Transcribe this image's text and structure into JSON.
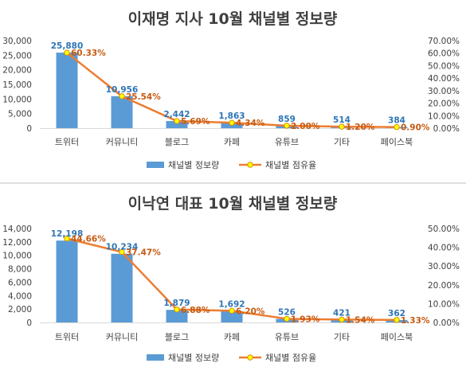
{
  "colors": {
    "bar": "#5b9bd5",
    "line": "#ed7d31",
    "marker_fill": "#ffff00",
    "marker_stroke": "#d99100",
    "bar_label": "#2e75b6",
    "line_label": "#c55a11",
    "grid": "#d9d9d9",
    "divider": "#bfbfbf"
  },
  "chart_data": [
    {
      "type": "bar",
      "title": "이재명 지사 10월 채널별 정보량",
      "categories": [
        "트위터",
        "커뮤니티",
        "블로그",
        "카페",
        "유튜브",
        "기타",
        "페이스북"
      ],
      "series": [
        {
          "name": "채널별 정보량",
          "type": "bar",
          "axis": "left",
          "values": [
            25880,
            10956,
            2442,
            1863,
            859,
            514,
            384
          ],
          "labels": [
            "25,880",
            "10,956",
            "2,442",
            "1,863",
            "859",
            "514",
            "384"
          ]
        },
        {
          "name": "채널별 점유율",
          "type": "line",
          "axis": "right",
          "values": [
            60.33,
            25.54,
            5.69,
            4.34,
            2.0,
            1.2,
            0.9
          ],
          "labels": [
            "60.33%",
            "25.54%",
            "5.69%",
            "4.34%",
            "2.00%",
            "1.20%",
            "0.90%"
          ]
        }
      ],
      "ylim_left": [
        0,
        30000
      ],
      "yticks_left": [
        "0",
        "5,000",
        "10,000",
        "15,000",
        "20,000",
        "25,000",
        "30,000"
      ],
      "ylim_right": [
        0,
        70
      ],
      "yticks_right": [
        "0.00%",
        "10.00%",
        "20.00%",
        "30.00%",
        "40.00%",
        "50.00%",
        "60.00%",
        "70.00%"
      ],
      "legend": "bottom",
      "grid": false
    },
    {
      "type": "bar",
      "title": "이낙연 대표 10월 채널별 정보량",
      "categories": [
        "트위터",
        "커뮤니티",
        "블로그",
        "카페",
        "유튜브",
        "기타",
        "페이스북"
      ],
      "series": [
        {
          "name": "채널별 정보량",
          "type": "bar",
          "axis": "left",
          "values": [
            12198,
            10234,
            1879,
            1692,
            526,
            421,
            362
          ],
          "labels": [
            "12,198",
            "10,234",
            "1,879",
            "1,692",
            "526",
            "421",
            "362"
          ]
        },
        {
          "name": "채널별 점유율",
          "type": "line",
          "axis": "right",
          "values": [
            44.66,
            37.47,
            6.88,
            6.2,
            1.93,
            1.54,
            1.33
          ],
          "labels": [
            "44.66%",
            "37.47%",
            "6.88%",
            "6.20%",
            "1.93%",
            "1.54%",
            "1.33%"
          ]
        }
      ],
      "ylim_left": [
        0,
        14000
      ],
      "yticks_left": [
        "0",
        "2,000",
        "4,000",
        "6,000",
        "8,000",
        "10,000",
        "12,000",
        "14,000"
      ],
      "ylim_right": [
        0,
        50
      ],
      "yticks_right": [
        "0.00%",
        "10.00%",
        "20.00%",
        "30.00%",
        "40.00%",
        "50.00%"
      ],
      "legend": "bottom",
      "grid": false
    }
  ]
}
